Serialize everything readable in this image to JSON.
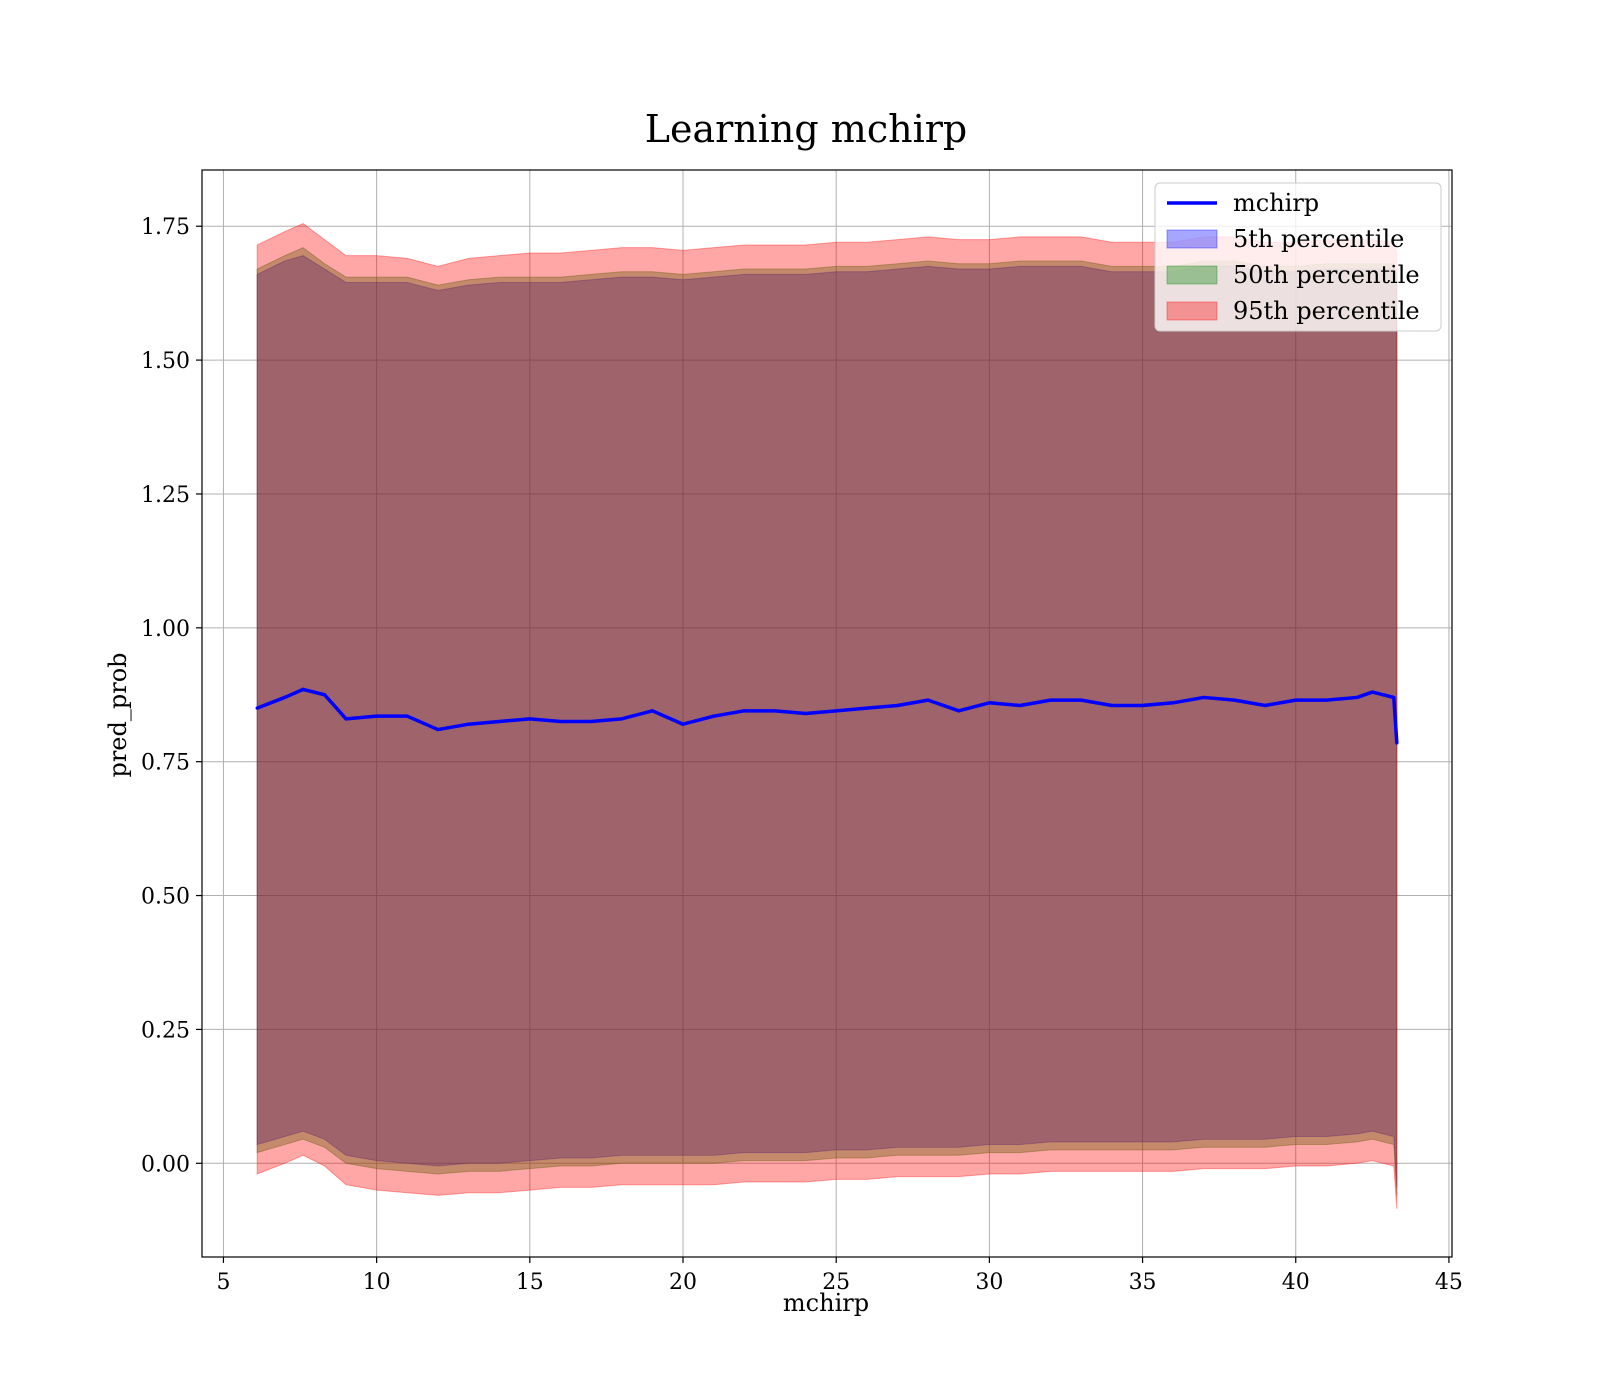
{
  "chart_data": {
    "type": "area",
    "title": "Learning mchirp",
    "xlabel": "mchirp",
    "ylabel": "pred_prob",
    "xlim": [
      4.3,
      45.1
    ],
    "ylim": [
      -0.175,
      1.855
    ],
    "grid": true,
    "legend_position": "top-right",
    "xticks": [
      {
        "value": 5,
        "label": "5"
      },
      {
        "value": 10,
        "label": "10"
      },
      {
        "value": 15,
        "label": "15"
      },
      {
        "value": 20,
        "label": "20"
      },
      {
        "value": 25,
        "label": "25"
      },
      {
        "value": 30,
        "label": "30"
      },
      {
        "value": 35,
        "label": "35"
      },
      {
        "value": 40,
        "label": "40"
      },
      {
        "value": 45,
        "label": "45"
      }
    ],
    "yticks": [
      {
        "value": 0.0,
        "label": "0.00"
      },
      {
        "value": 0.25,
        "label": "0.25"
      },
      {
        "value": 0.5,
        "label": "0.50"
      },
      {
        "value": 0.75,
        "label": "0.75"
      },
      {
        "value": 1.0,
        "label": "1.00"
      },
      {
        "value": 1.25,
        "label": "1.25"
      },
      {
        "value": 1.5,
        "label": "1.50"
      },
      {
        "value": 1.75,
        "label": "1.75"
      }
    ],
    "x": [
      6.1,
      7.0,
      7.6,
      8.3,
      9.0,
      10.0,
      11.0,
      12.0,
      13.0,
      14.0,
      15.0,
      16.0,
      17.0,
      18.0,
      19.0,
      20.0,
      21.0,
      22.0,
      23.0,
      24.0,
      25.0,
      26.0,
      27.0,
      28.0,
      29.0,
      30.0,
      31.0,
      32.0,
      33.0,
      34.0,
      35.0,
      36.0,
      37.0,
      38.0,
      39.0,
      40.0,
      41.0,
      42.0,
      42.5,
      43.2,
      43.3
    ],
    "line_series": {
      "name": "mchirp",
      "color": "#0000ff",
      "values": [
        0.85,
        0.87,
        0.885,
        0.875,
        0.83,
        0.835,
        0.835,
        0.81,
        0.82,
        0.825,
        0.83,
        0.825,
        0.825,
        0.83,
        0.845,
        0.82,
        0.835,
        0.845,
        0.845,
        0.84,
        0.845,
        0.85,
        0.855,
        0.865,
        0.845,
        0.86,
        0.855,
        0.865,
        0.865,
        0.855,
        0.855,
        0.86,
        0.87,
        0.865,
        0.855,
        0.865,
        0.865,
        0.87,
        0.88,
        0.87,
        0.785
      ]
    },
    "band_series": [
      {
        "name": "5th percentile",
        "color": "#0000ff",
        "upper": [
          1.66,
          1.685,
          1.695,
          1.67,
          1.645,
          1.645,
          1.645,
          1.63,
          1.64,
          1.645,
          1.645,
          1.645,
          1.65,
          1.655,
          1.655,
          1.65,
          1.655,
          1.66,
          1.66,
          1.66,
          1.665,
          1.665,
          1.67,
          1.675,
          1.67,
          1.67,
          1.675,
          1.675,
          1.675,
          1.665,
          1.665,
          1.665,
          1.675,
          1.675,
          1.665,
          1.665,
          1.67,
          1.67,
          1.67,
          1.67,
          1.65
        ],
        "lower": [
          0.035,
          0.05,
          0.06,
          0.045,
          0.015,
          0.005,
          0.0,
          -0.005,
          0.0,
          0.0,
          0.005,
          0.01,
          0.01,
          0.015,
          0.015,
          0.015,
          0.015,
          0.02,
          0.02,
          0.02,
          0.025,
          0.025,
          0.03,
          0.03,
          0.03,
          0.035,
          0.035,
          0.04,
          0.04,
          0.04,
          0.04,
          0.04,
          0.045,
          0.045,
          0.045,
          0.05,
          0.05,
          0.055,
          0.06,
          0.05,
          -0.045
        ]
      },
      {
        "name": "50th percentile",
        "color": "#008000",
        "upper": [
          1.67,
          1.695,
          1.71,
          1.68,
          1.655,
          1.655,
          1.655,
          1.64,
          1.65,
          1.655,
          1.655,
          1.655,
          1.66,
          1.665,
          1.665,
          1.66,
          1.665,
          1.67,
          1.67,
          1.67,
          1.675,
          1.675,
          1.68,
          1.685,
          1.68,
          1.68,
          1.685,
          1.685,
          1.685,
          1.675,
          1.675,
          1.675,
          1.685,
          1.685,
          1.675,
          1.675,
          1.68,
          1.68,
          1.68,
          1.68,
          1.66
        ],
        "lower": [
          0.02,
          0.035,
          0.045,
          0.03,
          0.0,
          -0.01,
          -0.015,
          -0.02,
          -0.015,
          -0.015,
          -0.01,
          -0.005,
          -0.005,
          0.0,
          0.0,
          0.0,
          0.0,
          0.005,
          0.005,
          0.005,
          0.01,
          0.01,
          0.015,
          0.015,
          0.015,
          0.02,
          0.02,
          0.025,
          0.025,
          0.025,
          0.025,
          0.025,
          0.03,
          0.03,
          0.03,
          0.035,
          0.035,
          0.04,
          0.045,
          0.035,
          -0.06
        ]
      },
      {
        "name": "95th percentile",
        "color": "#ff0000",
        "upper": [
          1.715,
          1.74,
          1.755,
          1.725,
          1.695,
          1.695,
          1.69,
          1.675,
          1.69,
          1.695,
          1.7,
          1.7,
          1.705,
          1.71,
          1.71,
          1.705,
          1.71,
          1.715,
          1.715,
          1.715,
          1.72,
          1.72,
          1.725,
          1.73,
          1.725,
          1.725,
          1.73,
          1.73,
          1.73,
          1.72,
          1.72,
          1.72,
          1.73,
          1.73,
          1.72,
          1.72,
          1.725,
          1.725,
          1.725,
          1.72,
          1.7
        ],
        "lower": [
          -0.02,
          0.0,
          0.015,
          -0.005,
          -0.04,
          -0.05,
          -0.055,
          -0.06,
          -0.055,
          -0.055,
          -0.05,
          -0.045,
          -0.045,
          -0.04,
          -0.04,
          -0.04,
          -0.04,
          -0.035,
          -0.035,
          -0.035,
          -0.03,
          -0.03,
          -0.025,
          -0.025,
          -0.025,
          -0.02,
          -0.02,
          -0.015,
          -0.015,
          -0.015,
          -0.015,
          -0.015,
          -0.01,
          -0.01,
          -0.01,
          -0.005,
          -0.005,
          0.0,
          0.005,
          -0.005,
          -0.085
        ]
      }
    ]
  }
}
